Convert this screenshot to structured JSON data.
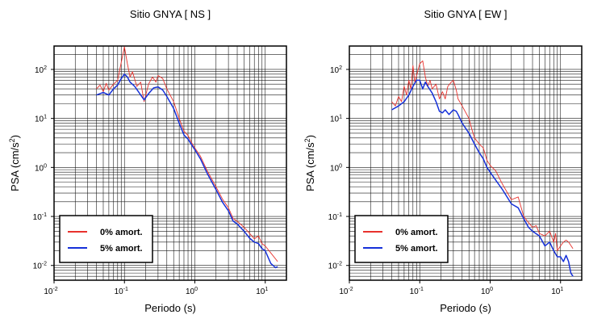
{
  "chart_data": [
    {
      "type": "line",
      "title": "Sitio GNYA [ NS ]",
      "xlabel": "Periodo (s)",
      "ylabel_main": "PSA (cm/s",
      "ylabel_sup": "2",
      "ylabel_close": ")",
      "xscale": "log",
      "yscale": "log",
      "xlim": [
        0.01,
        20
      ],
      "ylim": [
        0.005,
        300
      ],
      "grid": true,
      "x_ticks": [
        {
          "base": "10",
          "exp": "-2"
        },
        {
          "base": "10",
          "exp": "-1"
        },
        {
          "base": "10",
          "exp": "0"
        },
        {
          "base": "10",
          "exp": "1"
        }
      ],
      "y_ticks": [
        {
          "base": "10",
          "exp": "-2"
        },
        {
          "base": "10",
          "exp": "-1"
        },
        {
          "base": "10",
          "exp": "0"
        },
        {
          "base": "10",
          "exp": "1"
        },
        {
          "base": "10",
          "exp": "2"
        }
      ],
      "legend_position": "bottom-left",
      "series": [
        {
          "name": "0% amort.",
          "color": "#e8322d",
          "points": [
            [
              0.04,
              40
            ],
            [
              0.045,
              48
            ],
            [
              0.05,
              35
            ],
            [
              0.055,
              52
            ],
            [
              0.06,
              38
            ],
            [
              0.07,
              50
            ],
            [
              0.08,
              60
            ],
            [
              0.09,
              140
            ],
            [
              0.1,
              290
            ],
            [
              0.11,
              130
            ],
            [
              0.12,
              70
            ],
            [
              0.13,
              90
            ],
            [
              0.15,
              45
            ],
            [
              0.17,
              55
            ],
            [
              0.19,
              22
            ],
            [
              0.22,
              50
            ],
            [
              0.25,
              70
            ],
            [
              0.28,
              55
            ],
            [
              0.3,
              75
            ],
            [
              0.35,
              65
            ],
            [
              0.4,
              40
            ],
            [
              0.5,
              22
            ],
            [
              0.6,
              10
            ],
            [
              0.7,
              5.5
            ],
            [
              0.8,
              4.5
            ],
            [
              0.9,
              3.2
            ],
            [
              1.0,
              2.5
            ],
            [
              1.2,
              1.7
            ],
            [
              1.5,
              0.85
            ],
            [
              2.0,
              0.4
            ],
            [
              2.5,
              0.22
            ],
            [
              3.0,
              0.15
            ],
            [
              3.5,
              0.09
            ],
            [
              4.0,
              0.08
            ],
            [
              5.0,
              0.06
            ],
            [
              6.0,
              0.045
            ],
            [
              7.0,
              0.035
            ],
            [
              8.0,
              0.04
            ],
            [
              9.0,
              0.028
            ],
            [
              10.0,
              0.025
            ],
            [
              12.0,
              0.018
            ],
            [
              15.0,
              0.012
            ]
          ]
        },
        {
          "name": "5% amort.",
          "color": "#1530d9",
          "points": [
            [
              0.04,
              30
            ],
            [
              0.05,
              34
            ],
            [
              0.06,
              30
            ],
            [
              0.07,
              40
            ],
            [
              0.08,
              48
            ],
            [
              0.09,
              65
            ],
            [
              0.1,
              80
            ],
            [
              0.11,
              70
            ],
            [
              0.12,
              55
            ],
            [
              0.14,
              45
            ],
            [
              0.17,
              30
            ],
            [
              0.19,
              24
            ],
            [
              0.22,
              32
            ],
            [
              0.26,
              42
            ],
            [
              0.3,
              44
            ],
            [
              0.35,
              38
            ],
            [
              0.4,
              28
            ],
            [
              0.5,
              16
            ],
            [
              0.6,
              8
            ],
            [
              0.7,
              4.6
            ],
            [
              0.8,
              3.8
            ],
            [
              0.9,
              2.9
            ],
            [
              1.0,
              2.3
            ],
            [
              1.2,
              1.5
            ],
            [
              1.5,
              0.75
            ],
            [
              2.0,
              0.35
            ],
            [
              2.5,
              0.19
            ],
            [
              3.0,
              0.13
            ],
            [
              3.5,
              0.08
            ],
            [
              4.0,
              0.07
            ],
            [
              5.0,
              0.05
            ],
            [
              6.0,
              0.036
            ],
            [
              7.0,
              0.03
            ],
            [
              8.0,
              0.028
            ],
            [
              9.0,
              0.022
            ],
            [
              10.0,
              0.02
            ],
            [
              12.0,
              0.011
            ],
            [
              14.0,
              0.009
            ],
            [
              15.0,
              0.0095
            ]
          ]
        }
      ]
    },
    {
      "type": "line",
      "title": "Sitio GNYA [ EW ]",
      "xlabel": "Periodo (s)",
      "ylabel_main": "PSA (cm/s",
      "ylabel_sup": "2",
      "ylabel_close": ")",
      "xscale": "log",
      "yscale": "log",
      "xlim": [
        0.01,
        20
      ],
      "ylim": [
        0.005,
        300
      ],
      "grid": true,
      "x_ticks": [
        {
          "base": "10",
          "exp": "-2"
        },
        {
          "base": "10",
          "exp": "-1"
        },
        {
          "base": "10",
          "exp": "0"
        },
        {
          "base": "10",
          "exp": "1"
        }
      ],
      "y_ticks": [
        {
          "base": "10",
          "exp": "-2"
        },
        {
          "base": "10",
          "exp": "-1"
        },
        {
          "base": "10",
          "exp": "0"
        },
        {
          "base": "10",
          "exp": "1"
        },
        {
          "base": "10",
          "exp": "2"
        }
      ],
      "legend_position": "bottom-left",
      "series": [
        {
          "name": "0% amort.",
          "color": "#e8322d",
          "points": [
            [
              0.04,
              22
            ],
            [
              0.045,
              18
            ],
            [
              0.05,
              28
            ],
            [
              0.055,
              22
            ],
            [
              0.06,
              45
            ],
            [
              0.065,
              30
            ],
            [
              0.07,
              60
            ],
            [
              0.075,
              40
            ],
            [
              0.08,
              120
            ],
            [
              0.085,
              55
            ],
            [
              0.09,
              75
            ],
            [
              0.1,
              130
            ],
            [
              0.11,
              150
            ],
            [
              0.12,
              70
            ],
            [
              0.13,
              45
            ],
            [
              0.14,
              60
            ],
            [
              0.15,
              40
            ],
            [
              0.17,
              50
            ],
            [
              0.19,
              25
            ],
            [
              0.21,
              35
            ],
            [
              0.23,
              25
            ],
            [
              0.25,
              45
            ],
            [
              0.28,
              55
            ],
            [
              0.3,
              60
            ],
            [
              0.33,
              38
            ],
            [
              0.35,
              25
            ],
            [
              0.4,
              18
            ],
            [
              0.5,
              10
            ],
            [
              0.55,
              6
            ],
            [
              0.6,
              4
            ],
            [
              0.7,
              3
            ],
            [
              0.8,
              2.5
            ],
            [
              0.9,
              1.4
            ],
            [
              1.0,
              1.1
            ],
            [
              1.2,
              0.85
            ],
            [
              1.5,
              0.45
            ],
            [
              2.0,
              0.22
            ],
            [
              2.5,
              0.25
            ],
            [
              3.0,
              0.1
            ],
            [
              3.5,
              0.075
            ],
            [
              4.0,
              0.06
            ],
            [
              4.5,
              0.065
            ],
            [
              5.0,
              0.045
            ],
            [
              6.0,
              0.04
            ],
            [
              7.0,
              0.05
            ],
            [
              8.0,
              0.03
            ],
            [
              8.5,
              0.045
            ],
            [
              9.0,
              0.02
            ],
            [
              10.0,
              0.025
            ],
            [
              11.0,
              0.03
            ],
            [
              12.0,
              0.033
            ],
            [
              13.0,
              0.03
            ],
            [
              15.0,
              0.022
            ]
          ]
        },
        {
          "name": "5% amort.",
          "color": "#1530d9",
          "points": [
            [
              0.04,
              15
            ],
            [
              0.05,
              18
            ],
            [
              0.06,
              22
            ],
            [
              0.07,
              30
            ],
            [
              0.08,
              45
            ],
            [
              0.09,
              60
            ],
            [
              0.1,
              60
            ],
            [
              0.11,
              40
            ],
            [
              0.12,
              55
            ],
            [
              0.13,
              45
            ],
            [
              0.15,
              33
            ],
            [
              0.17,
              22
            ],
            [
              0.19,
              14
            ],
            [
              0.21,
              13
            ],
            [
              0.23,
              15
            ],
            [
              0.26,
              12
            ],
            [
              0.3,
              15
            ],
            [
              0.33,
              14
            ],
            [
              0.35,
              12
            ],
            [
              0.4,
              8
            ],
            [
              0.5,
              5
            ],
            [
              0.6,
              3
            ],
            [
              0.7,
              2
            ],
            [
              0.8,
              1.5
            ],
            [
              0.9,
              1.0
            ],
            [
              1.0,
              0.8
            ],
            [
              1.2,
              0.55
            ],
            [
              1.5,
              0.35
            ],
            [
              2.0,
              0.18
            ],
            [
              2.5,
              0.15
            ],
            [
              3.0,
              0.09
            ],
            [
              3.5,
              0.06
            ],
            [
              4.0,
              0.05
            ],
            [
              5.0,
              0.04
            ],
            [
              6.0,
              0.025
            ],
            [
              7.0,
              0.03
            ],
            [
              8.0,
              0.02
            ],
            [
              9.0,
              0.015
            ],
            [
              10.0,
              0.015
            ],
            [
              11.0,
              0.012
            ],
            [
              12.0,
              0.016
            ],
            [
              13.0,
              0.012
            ],
            [
              14.0,
              0.007
            ],
            [
              15.0,
              0.006
            ]
          ]
        }
      ]
    }
  ]
}
